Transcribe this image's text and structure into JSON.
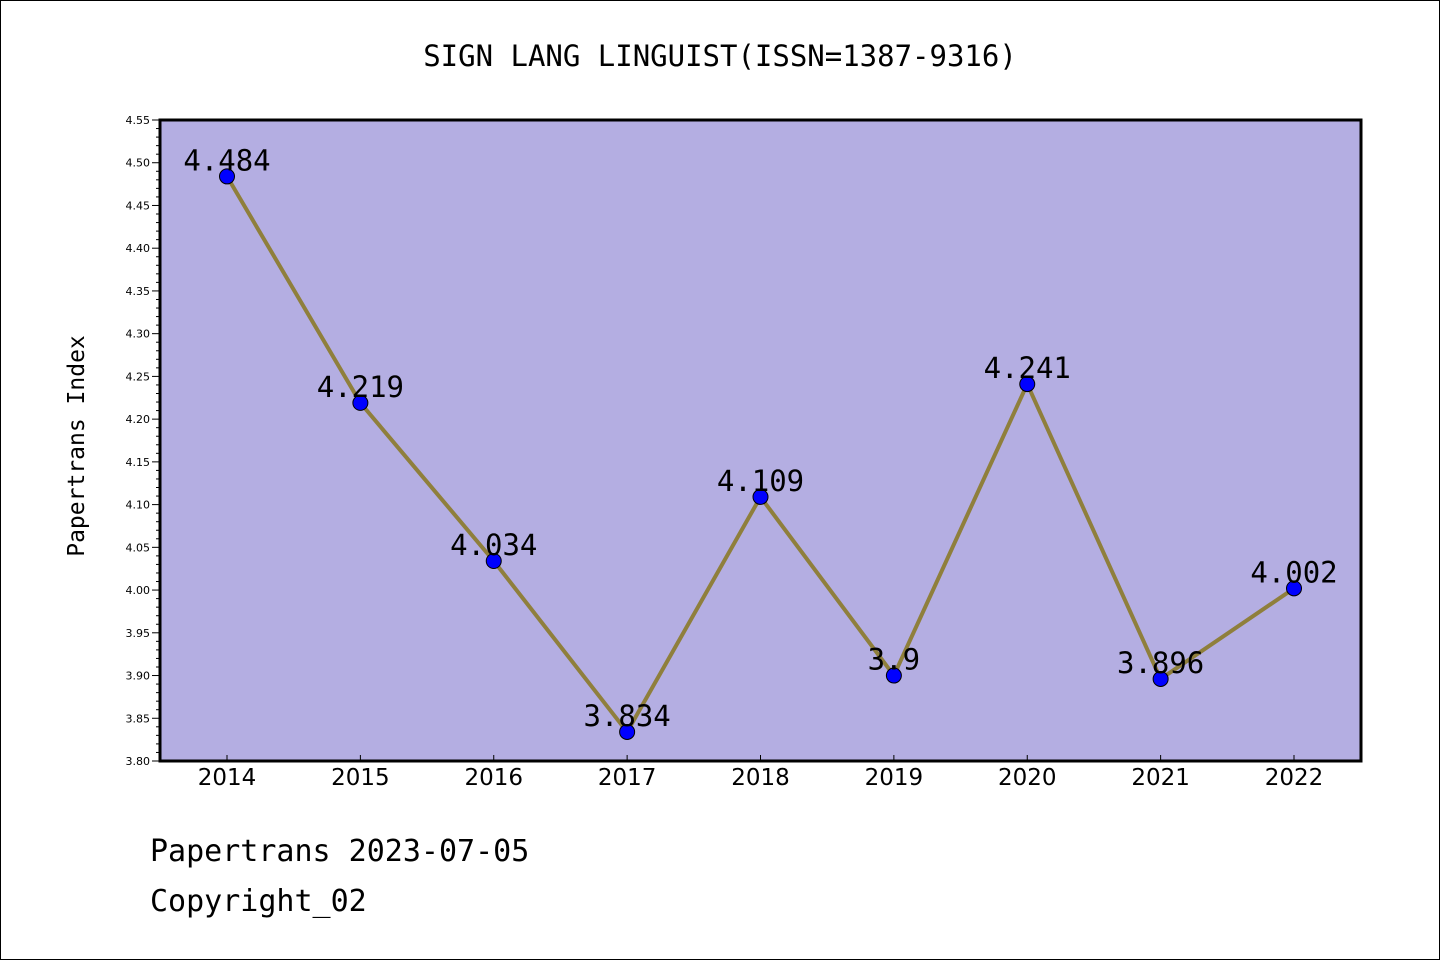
{
  "chart_data": {
    "type": "line",
    "title": "SIGN LANG LINGUIST(ISSN=1387-9316)",
    "xlabel": "",
    "ylabel": "Papertrans Index",
    "categories": [
      "2014",
      "2015",
      "2016",
      "2017",
      "2018",
      "2019",
      "2020",
      "2021",
      "2022"
    ],
    "series": [
      {
        "values": [
          4.484,
          4.219,
          4.034,
          3.834,
          4.109,
          3.9,
          4.241,
          3.896,
          4.002
        ],
        "labels": [
          "4.484",
          "4.219",
          "4.034",
          "3.834",
          "4.109",
          "3.9",
          "4.241",
          "3.896",
          "4.002"
        ]
      }
    ],
    "ylim": [
      3.8,
      4.55
    ],
    "yticks": [
      "3.80",
      "3.85",
      "3.90",
      "3.95",
      "4.00",
      "4.05",
      "4.10",
      "4.15",
      "4.20",
      "4.25",
      "4.30",
      "4.35",
      "4.40",
      "4.45",
      "4.50",
      "4.55"
    ],
    "grid": false,
    "legend": "none",
    "colors": {
      "plot_background": "#b4aee2",
      "line": "#8f7f3c",
      "marker": "#0000ff"
    }
  },
  "footer": {
    "date_line": "Papertrans 2023-07-05",
    "copyright": "Copyright_02"
  }
}
